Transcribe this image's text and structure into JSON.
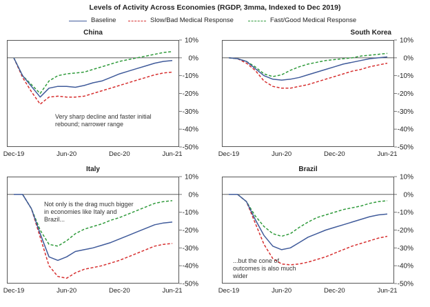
{
  "title": "Levels of Activity Across Economies (RGDP, 3mma, Indexed to Dec 2019)",
  "legend": [
    {
      "label": "Baseline",
      "color": "#3f5a9a",
      "dash": "solid"
    },
    {
      "label": "Slow/Bad Medical Response",
      "color": "#d62e2e",
      "dash": "dashed"
    },
    {
      "label": "Fast/Good Medical Response",
      "color": "#2e9a3a",
      "dash": "dashed"
    }
  ],
  "chart_data": [
    {
      "type": "line",
      "title": "China",
      "x": [
        "Dec-19",
        "Jan-20",
        "Feb-20",
        "Mar-20",
        "Apr-20",
        "May-20",
        "Jun-20",
        "Jul-20",
        "Aug-20",
        "Sep-20",
        "Oct-20",
        "Nov-20",
        "Dec-20",
        "Jan-21",
        "Feb-21",
        "Mar-21",
        "Apr-21",
        "May-21",
        "Jun-21"
      ],
      "xticks": [
        "Dec-19",
        "Jun-20",
        "Dec-20",
        "Jun-21"
      ],
      "ylim": [
        -50,
        10
      ],
      "yticks": [
        10,
        0,
        -10,
        -20,
        -30,
        -40,
        -50
      ],
      "ytick_labels": [
        "10%",
        "0%",
        "-10%",
        "-20%",
        "-30%",
        "-40%",
        "-50%"
      ],
      "series": [
        {
          "name": "Baseline",
          "values": [
            0,
            -10,
            -16,
            -22,
            -17,
            -16,
            -16,
            -16.5,
            -15.5,
            -14,
            -13,
            -11,
            -9,
            -7.5,
            -6,
            -4.5,
            -3,
            -2,
            -1.5
          ]
        },
        {
          "name": "Slow/Bad Medical Response",
          "values": [
            0,
            -11,
            -19,
            -26,
            -22,
            -21.5,
            -22,
            -22,
            -21.5,
            -20,
            -18.5,
            -17,
            -15.5,
            -14,
            -12.5,
            -11,
            -9.5,
            -8.5,
            -8
          ]
        },
        {
          "name": "Fast/Good Medical Response",
          "values": [
            0,
            -10,
            -15,
            -20,
            -13,
            -10,
            -9,
            -8.5,
            -8,
            -6.5,
            -5,
            -3.5,
            -2,
            -1,
            0,
            1,
            2,
            3,
            3.5
          ]
        }
      ],
      "annotation": "Very sharp decline and faster initial rebound; narrower range"
    },
    {
      "type": "line",
      "title": "South Korea",
      "x": [
        "Dec-19",
        "Jan-20",
        "Feb-20",
        "Mar-20",
        "Apr-20",
        "May-20",
        "Jun-20",
        "Jul-20",
        "Aug-20",
        "Sep-20",
        "Oct-20",
        "Nov-20",
        "Dec-20",
        "Jan-21",
        "Feb-21",
        "Mar-21",
        "Apr-21",
        "May-21",
        "Jun-21"
      ],
      "xticks": [
        "Dec-19",
        "Jun-20",
        "Dec-20",
        "Jun-21"
      ],
      "ylim": [
        -50,
        10
      ],
      "yticks": [
        10,
        0,
        -10,
        -20,
        -30,
        -40,
        -50
      ],
      "ytick_labels": [
        "10%",
        "0%",
        "-10%",
        "-20%",
        "-30%",
        "-40%",
        "-50%"
      ],
      "series": [
        {
          "name": "Baseline",
          "values": [
            0,
            -0.5,
            -2,
            -6,
            -10,
            -12,
            -12.5,
            -12,
            -11,
            -9.5,
            -8,
            -6.5,
            -5,
            -3.5,
            -2.5,
            -1.5,
            -0.5,
            0,
            0.5
          ]
        },
        {
          "name": "Slow/Bad Medical Response",
          "values": [
            0,
            -0.5,
            -3,
            -7,
            -13,
            -16,
            -17,
            -17,
            -16,
            -15,
            -13.5,
            -12,
            -10.5,
            -9,
            -7.5,
            -6.5,
            -5,
            -4,
            -3
          ]
        },
        {
          "name": "Fast/Good Medical Response",
          "values": [
            0,
            -0.5,
            -2,
            -5,
            -9,
            -10.5,
            -9.5,
            -7,
            -5,
            -3.5,
            -2.5,
            -1.5,
            -1,
            -0.5,
            0,
            1,
            1.5,
            2,
            2.5
          ]
        }
      ],
      "annotation": ""
    },
    {
      "type": "line",
      "title": "Italy",
      "x": [
        "Dec-19",
        "Jan-20",
        "Feb-20",
        "Mar-20",
        "Apr-20",
        "May-20",
        "Jun-20",
        "Jul-20",
        "Aug-20",
        "Sep-20",
        "Oct-20",
        "Nov-20",
        "Dec-20",
        "Jan-21",
        "Feb-21",
        "Mar-21",
        "Apr-21",
        "May-21",
        "Jun-21"
      ],
      "xticks": [
        "Dec-19",
        "Jun-20",
        "Dec-20",
        "Jun-21"
      ],
      "ylim": [
        -50,
        10
      ],
      "yticks": [
        10,
        0,
        -10,
        -20,
        -30,
        -40,
        -50
      ],
      "ytick_labels": [
        "10%",
        "0%",
        "-10%",
        "-20%",
        "-30%",
        "-40%",
        "-50%"
      ],
      "series": [
        {
          "name": "Baseline",
          "values": [
            0,
            0,
            -8,
            -22,
            -35,
            -37,
            -35,
            -32,
            -31,
            -30,
            -28.5,
            -27,
            -25,
            -23,
            -21,
            -19,
            -17,
            -16,
            -15.5
          ]
        },
        {
          "name": "Slow/Bad Medical Response",
          "values": [
            0,
            0,
            -8,
            -24,
            -40,
            -46,
            -47,
            -44,
            -42,
            -41,
            -40,
            -38.5,
            -37,
            -35,
            -33,
            -31,
            -29,
            -28,
            -27.5
          ]
        },
        {
          "name": "Fast/Good Medical Response",
          "values": [
            0,
            0,
            -8,
            -20,
            -28,
            -29,
            -26,
            -22,
            -19.5,
            -18,
            -16.5,
            -14.5,
            -13,
            -11,
            -9,
            -7,
            -5,
            -4,
            -3.5
          ]
        }
      ],
      "annotation": "Not only is the drag much bigger in economies like Italy and Brazil..."
    },
    {
      "type": "line",
      "title": "Brazil",
      "x": [
        "Dec-19",
        "Jan-20",
        "Feb-20",
        "Mar-20",
        "Apr-20",
        "May-20",
        "Jun-20",
        "Jul-20",
        "Aug-20",
        "Sep-20",
        "Oct-20",
        "Nov-20",
        "Dec-20",
        "Jan-21",
        "Feb-21",
        "Mar-21",
        "Apr-21",
        "May-21",
        "Jun-21"
      ],
      "xticks": [
        "Dec-19",
        "Jun-20",
        "Dec-20",
        "Jun-21"
      ],
      "ylim": [
        -50,
        10
      ],
      "yticks": [
        10,
        0,
        -10,
        -20,
        -30,
        -40,
        -50
      ],
      "ytick_labels": [
        "10%",
        "0%",
        "-10%",
        "-20%",
        "-30%",
        "-40%",
        "-50%"
      ],
      "series": [
        {
          "name": "Baseline",
          "values": [
            0,
            0,
            -4,
            -14,
            -23,
            -29,
            -31,
            -30,
            -27,
            -24,
            -22,
            -20,
            -18.5,
            -17,
            -15.5,
            -14,
            -12.5,
            -11.5,
            -11
          ]
        },
        {
          "name": "Slow/Bad Medical Response",
          "values": [
            0,
            0,
            -4,
            -16,
            -28,
            -36,
            -39,
            -39.5,
            -39,
            -38,
            -36.5,
            -35,
            -33,
            -31,
            -29,
            -27.5,
            -26,
            -24.5,
            -23.5
          ]
        },
        {
          "name": "Fast/Good Medical Response",
          "values": [
            0,
            0,
            -4,
            -12,
            -18,
            -22,
            -23.5,
            -22,
            -18.5,
            -15.5,
            -13,
            -11.5,
            -10,
            -8.5,
            -7.5,
            -6.5,
            -5,
            -4,
            -3.5
          ]
        }
      ],
      "annotation": "...but the cone of outcomes is also much wider"
    }
  ]
}
